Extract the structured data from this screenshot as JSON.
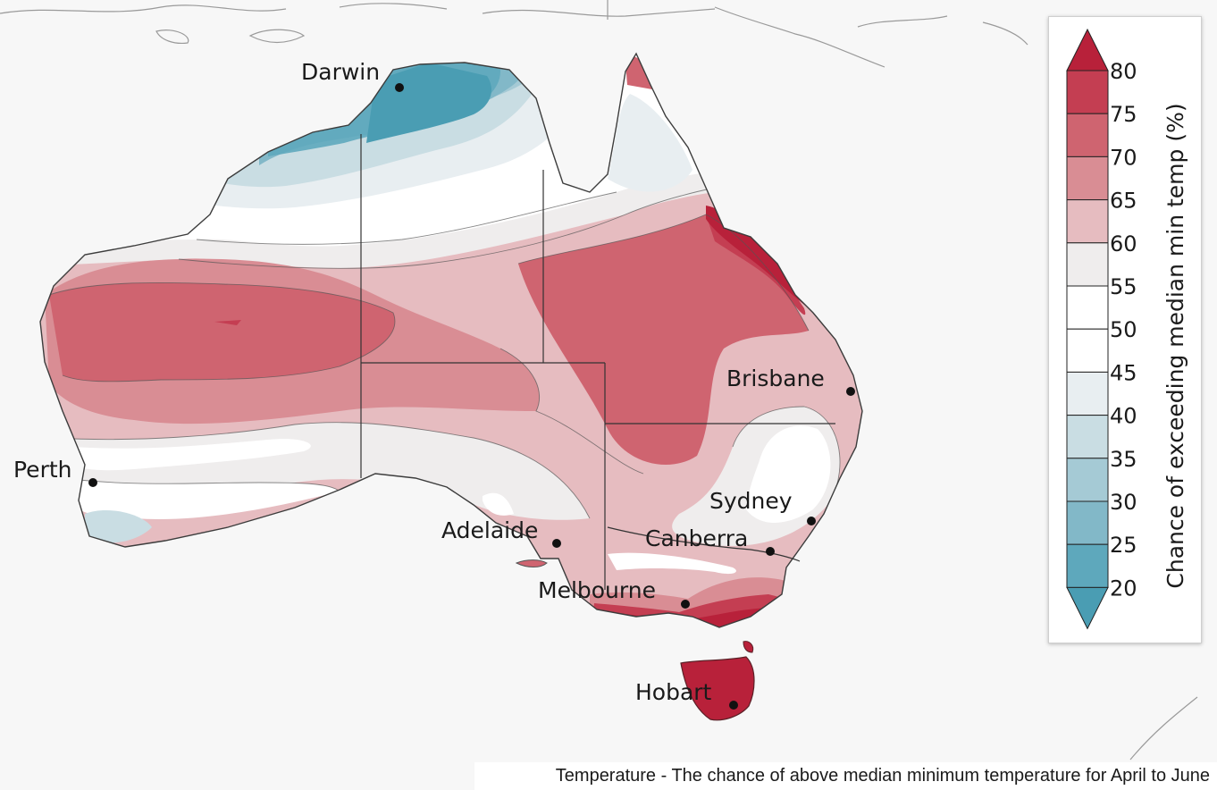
{
  "map": {
    "region": "Australia",
    "cities": [
      {
        "name": "Darwin"
      },
      {
        "name": "Brisbane"
      },
      {
        "name": "Perth"
      },
      {
        "name": "Sydney"
      },
      {
        "name": "Adelaide"
      },
      {
        "name": "Canberra"
      },
      {
        "name": "Melbourne"
      },
      {
        "name": "Hobart"
      }
    ]
  },
  "legend": {
    "title": "Chance of exceeding median min temp (%)",
    "ticks": [
      "80",
      "75",
      "70",
      "65",
      "60",
      "55",
      "50",
      "45",
      "40",
      "35",
      "30",
      "25",
      "20"
    ],
    "bins": [
      {
        "range": ">80",
        "color": "#b8213a"
      },
      {
        "range": "75-80",
        "color": "#c43e52"
      },
      {
        "range": "70-75",
        "color": "#cf6470"
      },
      {
        "range": "65-70",
        "color": "#d98d94"
      },
      {
        "range": "60-65",
        "color": "#e6bcc0"
      },
      {
        "range": "55-60",
        "color": "#efeded"
      },
      {
        "range": "50-55",
        "color": "#ffffff"
      },
      {
        "range": "45-50",
        "color": "#ffffff"
      },
      {
        "range": "40-45",
        "color": "#e8eef1"
      },
      {
        "range": "35-40",
        "color": "#c9dde3"
      },
      {
        "range": "30-35",
        "color": "#a5cad5"
      },
      {
        "range": "25-30",
        "color": "#82b8c8"
      },
      {
        "range": "20-25",
        "color": "#5ea8bc"
      },
      {
        "range": "<20",
        "color": "#4a9db3"
      }
    ]
  },
  "caption": "Temperature - The chance of above median minimum temperature for April to June"
}
